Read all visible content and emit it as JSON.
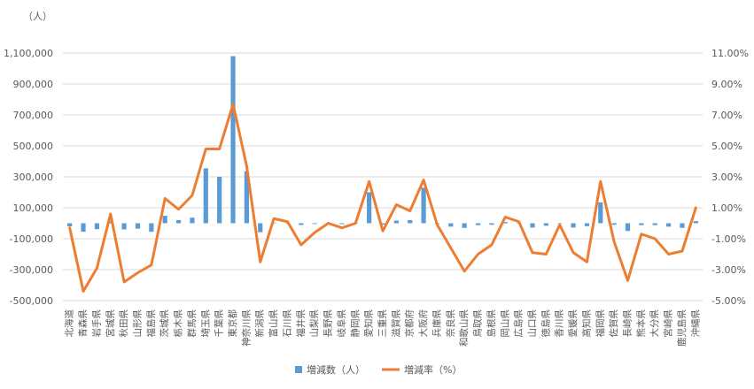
{
  "chart_data": {
    "type": "bar",
    "combo": "bar+line",
    "unit_label": "（人）",
    "categories": [
      "北海道",
      "青森県",
      "岩手県",
      "宮城県",
      "秋田県",
      "山形県",
      "福島県",
      "茨城県",
      "栃木県",
      "群馬県",
      "埼玉県",
      "千葉県",
      "東京都",
      "神奈川県",
      "新潟県",
      "富山県",
      "石川県",
      "福井県",
      "山梨県",
      "長野県",
      "岐阜県",
      "静岡県",
      "愛知県",
      "三重県",
      "滋賀県",
      "京都府",
      "大阪府",
      "兵庫県",
      "奈良県",
      "和歌山県",
      "鳥取県",
      "島根県",
      "岡山県",
      "広島県",
      "山口県",
      "徳島県",
      "香川県",
      "愛媛県",
      "高知県",
      "福岡県",
      "佐賀県",
      "長崎県",
      "熊本県",
      "大分県",
      "宮崎県",
      "鹿児島県",
      "沖縄県"
    ],
    "series": [
      {
        "name": "増減数（人）",
        "type": "bar",
        "axis": "left",
        "color": "#5B9BD5",
        "values": [
          -20000,
          -55000,
          -38000,
          14000,
          -40000,
          -35000,
          -55000,
          48000,
          20000,
          36000,
          355000,
          300000,
          1080000,
          336000,
          -58000,
          4000,
          1000,
          -11000,
          -5000,
          -1000,
          -6000,
          0,
          200000,
          -9000,
          17000,
          20000,
          230000,
          -5000,
          -22000,
          -30000,
          -12000,
          -10000,
          8000,
          3000,
          -28000,
          -16000,
          -1000,
          -28000,
          -19000,
          135000,
          -10000,
          -50000,
          -12000,
          -12000,
          -22000,
          -30000,
          14000
        ]
      },
      {
        "name": "増減率（%）",
        "type": "line",
        "axis": "right",
        "color": "#ED7D31",
        "values": [
          -0.3,
          -4.4,
          -2.9,
          0.6,
          -3.8,
          -3.2,
          -2.7,
          1.6,
          0.9,
          1.8,
          4.8,
          4.8,
          7.7,
          3.7,
          -2.5,
          0.3,
          0.1,
          -1.4,
          -0.6,
          0.0,
          -0.3,
          0.0,
          2.7,
          -0.5,
          1.2,
          0.8,
          2.8,
          -0.1,
          -1.6,
          -3.1,
          -2.0,
          -1.4,
          0.4,
          0.1,
          -1.9,
          -2.0,
          -0.1,
          -1.9,
          -2.5,
          2.7,
          -1.2,
          -3.7,
          -0.7,
          -1.0,
          -2.0,
          -1.8,
          1.0
        ]
      }
    ],
    "y_left": {
      "range": [
        -500000,
        1100000
      ],
      "ticks": [
        -500000,
        -300000,
        -100000,
        100000,
        300000,
        500000,
        700000,
        900000,
        1100000
      ],
      "tick_labels": [
        "-500,000",
        "-300,000",
        "-100,000",
        "100,000",
        "300,000",
        "500,000",
        "700,000",
        "900,000",
        "1,100,000"
      ]
    },
    "y_right": {
      "range": [
        -5,
        11
      ],
      "ticks": [
        -5,
        -3,
        -1,
        1,
        3,
        5,
        7,
        9,
        11
      ],
      "tick_labels": [
        "-5.00%",
        "-3.00%",
        "-1.00%",
        "1.00%",
        "3.00%",
        "5.00%",
        "7.00%",
        "9.00%",
        "11.00%"
      ]
    },
    "grid": true,
    "legend": "bottom",
    "gridline_color": "#D9D9D9"
  }
}
